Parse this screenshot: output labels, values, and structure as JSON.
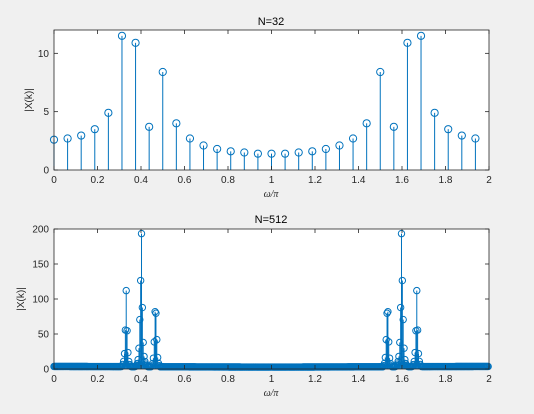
{
  "chart_data": [
    {
      "type": "stem",
      "title": "N=32",
      "xlabel": "ω/π",
      "ylabel": "|X(k)|",
      "xlim": [
        0,
        2
      ],
      "ylim": [
        0,
        12
      ],
      "xticks": [
        "0",
        "0.2",
        "0.4",
        "0.6",
        "0.8",
        "1",
        "1.2",
        "1.4",
        "1.6",
        "1.8",
        "2"
      ],
      "yticks": [
        "0",
        "5",
        "10"
      ],
      "color": "#0072BD",
      "grid": false,
      "x": [
        0,
        0.0625,
        0.125,
        0.1875,
        0.25,
        0.3125,
        0.375,
        0.4375,
        0.5,
        0.5625,
        0.625,
        0.6875,
        0.75,
        0.8125,
        0.875,
        0.9375,
        1.0,
        1.0625,
        1.125,
        1.1875,
        1.25,
        1.3125,
        1.375,
        1.4375,
        1.5,
        1.5625,
        1.625,
        1.6875,
        1.75,
        1.8125,
        1.875,
        1.9375
      ],
      "y": [
        2.6,
        2.7,
        2.95,
        3.5,
        4.9,
        11.5,
        10.9,
        3.7,
        8.4,
        4.0,
        2.7,
        2.1,
        1.8,
        1.6,
        1.5,
        1.4,
        1.4,
        1.4,
        1.5,
        1.6,
        1.8,
        2.1,
        2.7,
        4.0,
        8.4,
        3.7,
        10.9,
        11.5,
        4.9,
        3.5,
        2.95,
        2.7
      ]
    },
    {
      "type": "stem",
      "title": "N=512",
      "xlabel": "ω/π",
      "ylabel": "|X(k)|",
      "xlim": [
        0,
        2
      ],
      "ylim": [
        0,
        200
      ],
      "xticks": [
        "0",
        "0.2",
        "0.4",
        "0.6",
        "0.8",
        "1",
        "1.2",
        "1.4",
        "1.6",
        "1.8",
        "2"
      ],
      "yticks": [
        "0",
        "50",
        "100",
        "150",
        "200"
      ],
      "color": "#0072BD",
      "grid": false,
      "points": 512,
      "peaks": [
        {
          "x": 0.332,
          "y": 112
        },
        {
          "x": 0.336,
          "y": 47
        },
        {
          "x": 0.328,
          "y": 30
        },
        {
          "x": 0.395,
          "y": 55
        },
        {
          "x": 0.398,
          "y": 128
        },
        {
          "x": 0.402,
          "y": 195
        },
        {
          "x": 0.406,
          "y": 48
        },
        {
          "x": 0.41,
          "y": 38
        },
        {
          "x": 0.391,
          "y": 30
        },
        {
          "x": 0.465,
          "y": 82
        },
        {
          "x": 0.469,
          "y": 80
        },
        {
          "x": 0.473,
          "y": 30
        },
        {
          "x": 0.461,
          "y": 25
        }
      ]
    }
  ]
}
